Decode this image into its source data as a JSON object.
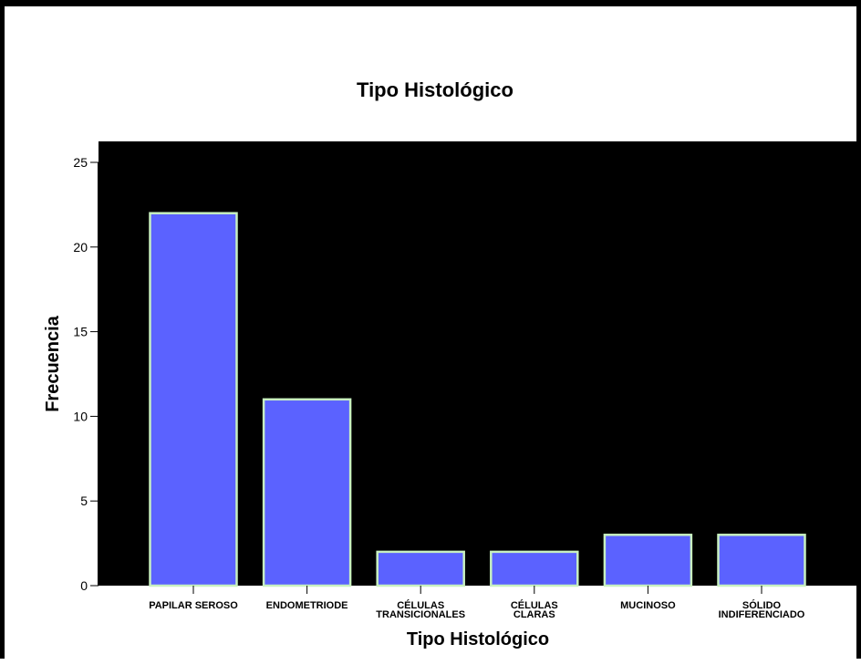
{
  "chart_data": {
    "type": "bar",
    "title": "Tipo Histológico",
    "xlabel": "Tipo Histológico",
    "ylabel": "Frecuencia",
    "categories": [
      [
        "PAPILAR SEROSO"
      ],
      [
        "ENDOMETRIODE"
      ],
      [
        "CÉLULAS",
        "TRANSICIONALES"
      ],
      [
        "CÉLULAS",
        "CLARAS"
      ],
      [
        "MUCINOSO"
      ],
      [
        "SÓLIDO",
        "INDIFERENCIADO"
      ]
    ],
    "values": [
      22,
      11,
      2,
      2,
      3,
      3
    ],
    "ylim": [
      0,
      25
    ],
    "yticks": [
      0,
      5,
      10,
      15,
      20,
      25
    ],
    "grid": false,
    "colors": {
      "plot_background": "#000000",
      "bar_fill": "#5b62ff",
      "bar_outline": "#c8f0c0"
    }
  }
}
